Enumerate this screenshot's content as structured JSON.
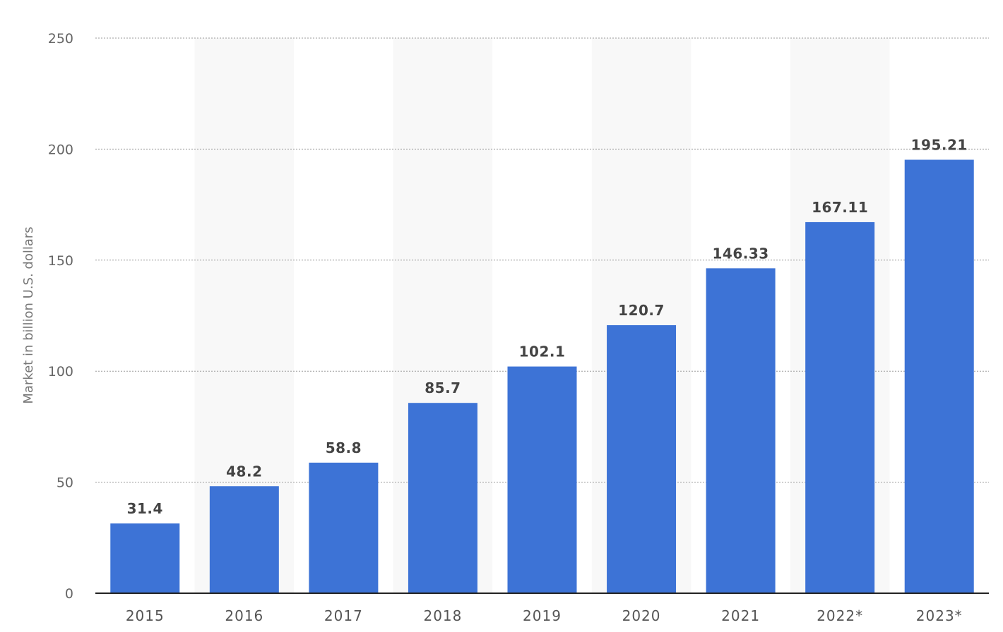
{
  "chart_data": {
    "type": "bar",
    "categories": [
      "2015",
      "2016",
      "2017",
      "2018",
      "2019",
      "2020",
      "2021",
      "2022*",
      "2023*"
    ],
    "values": [
      31.4,
      48.2,
      58.8,
      85.7,
      102.1,
      120.7,
      146.33,
      167.11,
      195.21
    ],
    "value_labels": [
      "31.4",
      "48.2",
      "58.8",
      "85.7",
      "102.1",
      "120.7",
      "146.33",
      "167.11",
      "195.21"
    ],
    "ylabel": "Market in billion U.S. dollars",
    "xlabel": "",
    "ylim": [
      0,
      250
    ],
    "yticks": [
      "0",
      "50",
      "100",
      "150",
      "200",
      "250"
    ],
    "grid": true,
    "bar_color": "#3d73d6",
    "band_color": "#f8f8f8"
  }
}
